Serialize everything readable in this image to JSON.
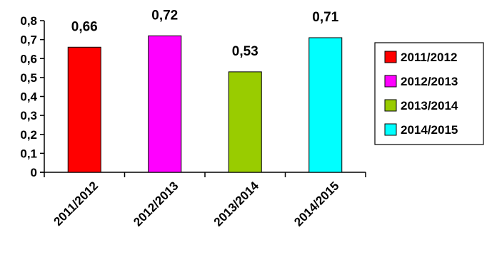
{
  "chart_data": {
    "type": "bar",
    "categories": [
      "2011/2012",
      "2012/2013",
      "2013/2014",
      "2014/2015"
    ],
    "values": [
      0.66,
      0.72,
      0.53,
      0.71
    ],
    "value_labels": [
      "0,66",
      "0,72",
      "0,53",
      "0,71"
    ],
    "colors": [
      "#ff0000",
      "#ff00ff",
      "#99cc00",
      "#00ffff"
    ],
    "ylim": [
      0,
      0.8
    ],
    "y_ticks": [
      0,
      0.1,
      0.2,
      0.3,
      0.4,
      0.5,
      0.6,
      0.7,
      0.8
    ],
    "y_tick_labels": [
      "0",
      "0,1",
      "0,2",
      "0,3",
      "0,4",
      "0,5",
      "0,6",
      "0,7",
      "0,8"
    ],
    "legend": {
      "position": "right",
      "entries": [
        "2011/2012",
        "2012/2013",
        "2013/2014",
        "2014/2015"
      ]
    },
    "grid": false,
    "title": "",
    "xlabel": "",
    "ylabel": ""
  }
}
